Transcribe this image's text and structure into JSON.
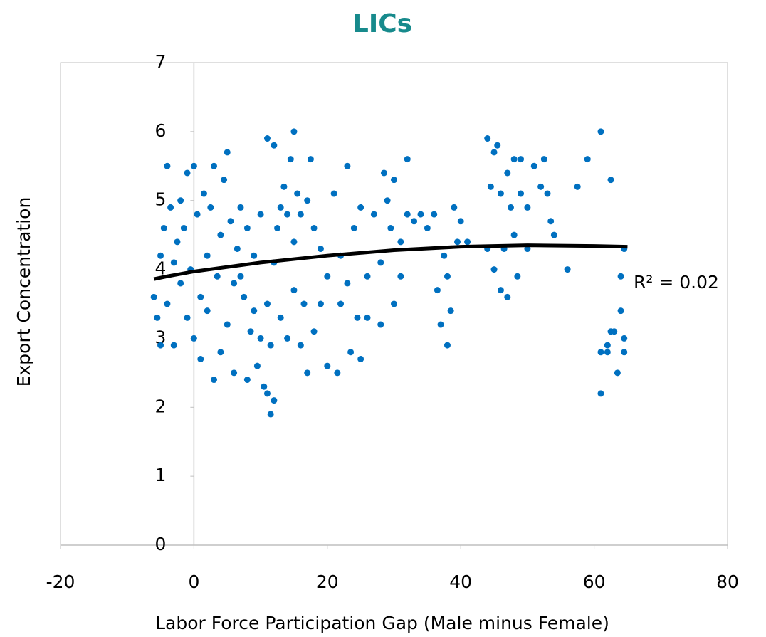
{
  "chart_data": {
    "type": "scatter",
    "title": "LICs",
    "x_label": "Labor Force Participation Gap (Male minus Female)",
    "y_label": "Export Concentration",
    "annotation": "R² = 0.02",
    "color": "#0070c0",
    "xlim": [
      -20,
      80
    ],
    "xticks": [
      -20,
      0,
      20,
      40,
      60,
      80
    ],
    "ylim": [
      0,
      7
    ],
    "yticks": [
      0,
      1,
      2,
      3,
      4,
      5,
      6,
      7
    ],
    "x": [
      -6,
      -5.5,
      -5,
      -5,
      -4.5,
      -4,
      -4,
      -3.5,
      -3,
      -3,
      -2.5,
      -2,
      -2,
      -1.5,
      -1,
      -1,
      -0.5,
      0,
      0,
      0.5,
      1,
      1,
      1.5,
      2,
      2,
      2.5,
      3,
      3,
      3.5,
      4,
      4,
      4.5,
      5,
      5,
      5.5,
      6,
      6,
      6.5,
      7,
      7,
      7.5,
      8,
      8,
      8.5,
      9,
      9,
      9.5,
      10,
      10,
      10.5,
      11,
      11,
      11,
      11.5,
      11.5,
      12,
      12,
      12,
      12.5,
      13,
      13,
      13.5,
      14,
      14,
      14.5,
      15,
      15,
      15,
      15.5,
      16,
      16,
      16.5,
      17,
      17,
      17.5,
      18,
      18,
      19,
      19,
      20,
      20,
      21,
      21.5,
      22,
      22,
      23,
      23,
      23.5,
      24,
      24.5,
      25,
      25,
      26,
      26,
      27,
      28,
      28,
      28.5,
      29,
      29.5,
      30,
      30,
      31,
      31,
      32,
      32,
      33,
      34,
      35,
      36,
      36.5,
      37,
      37.5,
      38,
      38,
      38.5,
      39,
      39.5,
      40,
      41,
      44,
      44,
      44.5,
      45,
      45,
      45.5,
      46,
      46,
      46.5,
      47,
      47,
      47.5,
      48,
      48,
      48.5,
      49,
      49,
      50,
      50,
      51,
      52,
      52.5,
      53,
      53.5,
      54,
      56,
      57.5,
      59,
      61,
      61,
      61,
      62,
      62.5,
      62.5,
      63,
      64,
      64,
      64.5,
      64.5,
      64.5,
      63.5,
      62
    ],
    "values": [
      3.6,
      3.3,
      2.9,
      4.2,
      4.6,
      5.5,
      3.5,
      4.9,
      4.1,
      2.9,
      4.4,
      3.8,
      5.0,
      4.6,
      3.3,
      5.4,
      4.0,
      5.5,
      3.0,
      4.8,
      3.6,
      2.7,
      5.1,
      4.2,
      3.4,
      4.9,
      2.4,
      5.5,
      3.9,
      4.5,
      2.8,
      5.3,
      3.2,
      5.7,
      4.7,
      3.8,
      2.5,
      4.3,
      3.9,
      4.9,
      3.6,
      2.4,
      4.6,
      3.1,
      4.2,
      3.4,
      2.6,
      3.0,
      4.8,
      2.3,
      5.9,
      2.2,
      3.5,
      1.9,
      2.9,
      2.1,
      4.1,
      5.8,
      4.6,
      4.9,
      3.3,
      5.2,
      4.8,
      3.0,
      5.6,
      6.0,
      4.4,
      3.7,
      5.1,
      4.8,
      2.9,
      3.5,
      5.0,
      2.5,
      5.6,
      4.6,
      3.1,
      3.5,
      4.3,
      2.6,
      3.9,
      5.1,
      2.5,
      4.2,
      3.5,
      5.5,
      3.8,
      2.8,
      4.6,
      3.3,
      4.9,
      2.7,
      3.9,
      3.3,
      4.8,
      3.2,
      4.1,
      5.4,
      5.0,
      4.6,
      5.3,
      3.5,
      4.4,
      3.9,
      5.6,
      4.8,
      4.7,
      4.8,
      4.6,
      4.8,
      3.7,
      3.2,
      4.2,
      2.9,
      3.9,
      3.4,
      4.9,
      4.4,
      4.7,
      4.4,
      4.3,
      5.9,
      5.2,
      5.7,
      4.0,
      5.8,
      3.7,
      5.1,
      4.3,
      3.6,
      5.4,
      4.9,
      5.6,
      4.5,
      3.9,
      5.1,
      5.6,
      4.3,
      4.9,
      5.5,
      5.2,
      5.6,
      5.1,
      4.7,
      4.5,
      4.0,
      5.2,
      5.6,
      6.0,
      2.8,
      2.2,
      2.9,
      3.1,
      5.3,
      3.1,
      3.9,
      3.4,
      2.8,
      3.0,
      4.3,
      2.5,
      2.8
    ],
    "trendline": {
      "color": "#000000",
      "x": [
        -6,
        -4,
        0,
        10,
        20,
        30,
        40,
        50,
        60,
        65
      ],
      "values": [
        3.86,
        3.9,
        3.97,
        4.1,
        4.2,
        4.28,
        4.33,
        4.35,
        4.34,
        4.33
      ]
    }
  }
}
